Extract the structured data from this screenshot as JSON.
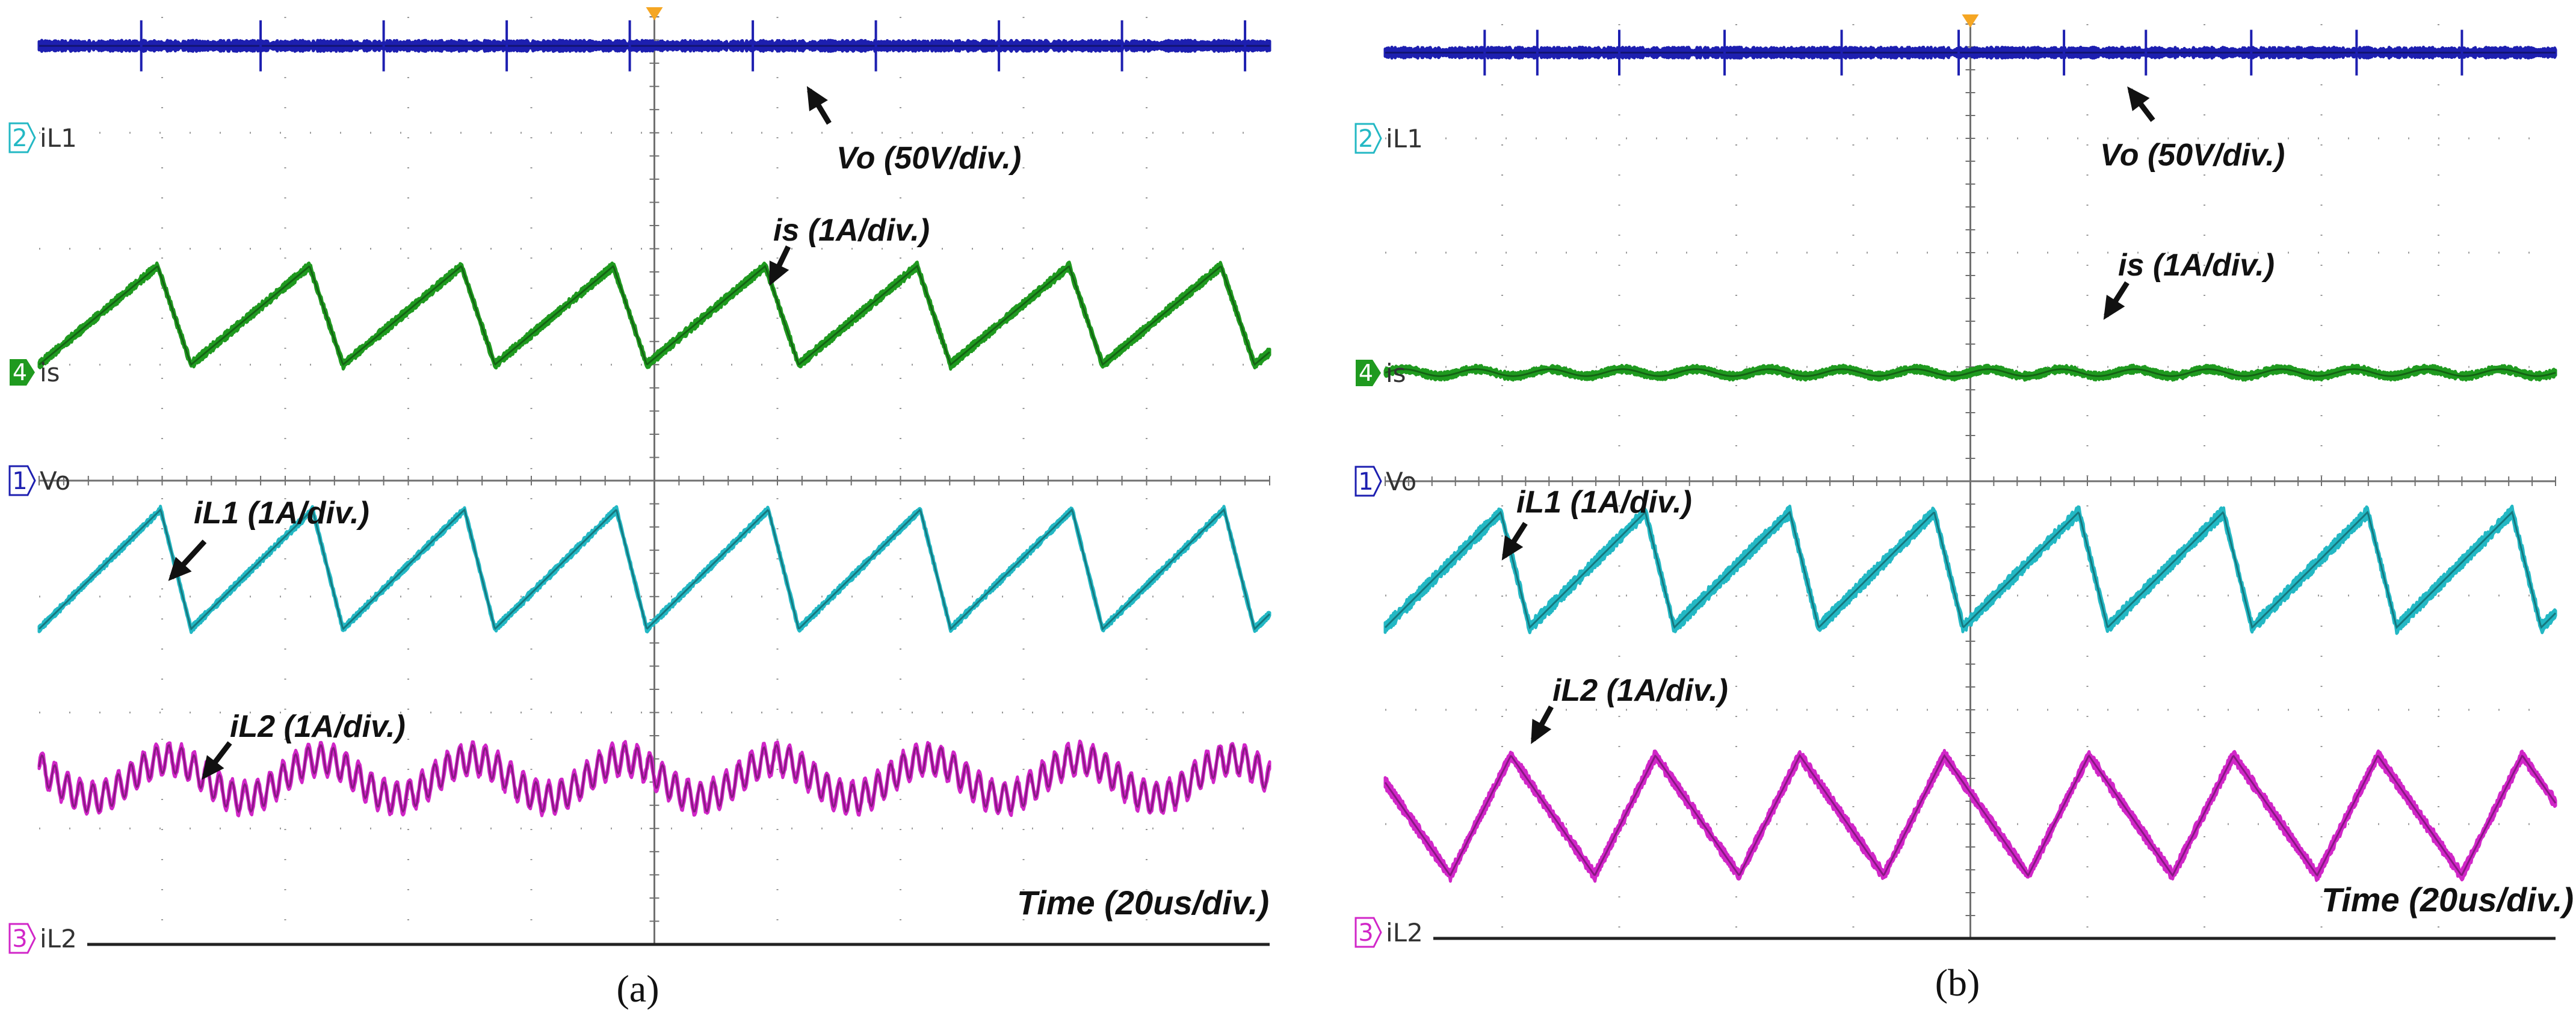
{
  "chart_data": [
    {
      "type": "line",
      "caption": "(a)",
      "time_label": "Time (20us/div.)",
      "grid": true,
      "grid_divisions": {
        "x": 10,
        "y": 8
      },
      "channel_labels": [
        {
          "number": "1",
          "name": "Vo",
          "color": "#1d1fb0"
        },
        {
          "number": "4",
          "name": "is",
          "color": "#1f9a1f"
        },
        {
          "number": "2",
          "name": "iL1",
          "color": "#23b8c4"
        },
        {
          "number": "3",
          "name": "iL2",
          "color": "#d126c8"
        }
      ],
      "annotations": [
        {
          "series": "Vo",
          "text": "Vo (50V/div.)"
        },
        {
          "series": "is",
          "text": "is (1A/div.)"
        },
        {
          "series": "iL1",
          "text": "iL1 (1A/div.)"
        },
        {
          "series": "iL2",
          "text": "iL2 (1A/div.)"
        }
      ],
      "series": [
        {
          "name": "Vo",
          "color": "#1d1fb0",
          "shape": "flat",
          "level_div": 7.75,
          "noise_div": 0.06,
          "spikes_x_div": [
            0.83,
            1.8,
            2.8,
            3.8,
            4.8,
            5.8,
            6.8,
            7.8,
            8.8,
            9.8
          ],
          "spike_div": 0.22
        },
        {
          "name": "is",
          "color": "#1f9a1f",
          "shape": "sawtooth",
          "periods": 8.1,
          "phase_div": 0.0,
          "max_div": 5.85,
          "min_div": 5.0,
          "rise_fraction": 0.78,
          "ripple_div": 0.05
        },
        {
          "name": "iL1",
          "color": "#23b8c4",
          "shape": "sawtooth",
          "periods": 8.1,
          "phase_div": 0.0,
          "max_div": 3.75,
          "min_div": 2.72,
          "rise_fraction": 0.8,
          "ripple_div": 0.04
        },
        {
          "name": "iL2",
          "color": "#d126c8",
          "shape": "ripple",
          "periods": 8.1,
          "phase_div": 0.4,
          "center_div": 1.43,
          "amp_div": 0.17,
          "hf_div": 0.12,
          "hf_mult": 12
        }
      ]
    },
    {
      "type": "line",
      "caption": "(b)",
      "time_label": "Time (20us/div.)",
      "grid": true,
      "grid_divisions": {
        "x": 10,
        "y": 8
      },
      "channel_labels": [
        {
          "number": "1",
          "name": "Vo",
          "color": "#1d1fb0"
        },
        {
          "number": "4",
          "name": "is",
          "color": "#1f9a1f"
        },
        {
          "number": "2",
          "name": "iL1",
          "color": "#23b8c4"
        },
        {
          "number": "3",
          "name": "iL2",
          "color": "#d126c8"
        }
      ],
      "annotations": [
        {
          "series": "Vo",
          "text": "Vo (50V/div.)"
        },
        {
          "series": "is",
          "text": "is (1A/div.)"
        },
        {
          "series": "iL1",
          "text": "iL1 (1A/div.)"
        },
        {
          "series": "iL2",
          "text": "iL2 (1A/div.)"
        }
      ],
      "series": [
        {
          "name": "Vo",
          "color": "#1d1fb0",
          "shape": "flat",
          "level_div": 7.75,
          "noise_div": 0.06,
          "spikes_x_div": [
            0.85,
            1.3,
            2.0,
            2.9,
            3.9,
            4.9,
            5.8,
            6.5,
            7.4,
            8.3,
            9.2
          ],
          "spike_div": 0.2
        },
        {
          "name": "is",
          "color": "#1f9a1f",
          "shape": "flat",
          "level_div": 4.95,
          "noise_div": 0.045,
          "wave_div": 0.03,
          "spikes_x_div": [],
          "spike_div": 0
        },
        {
          "name": "iL1",
          "color": "#23b8c4",
          "shape": "sawtooth",
          "periods": 8.1,
          "phase_div": 0.0,
          "max_div": 3.73,
          "min_div": 2.72,
          "rise_fraction": 0.8,
          "ripple_div": 0.07
        },
        {
          "name": "iL2",
          "color": "#d126c8",
          "shape": "sawtooth",
          "periods": 8.1,
          "phase_div": 0.55,
          "max_div": 1.6,
          "min_div": 0.55,
          "rise_fraction": 0.42,
          "ripple_div": 0.07
        }
      ]
    }
  ]
}
